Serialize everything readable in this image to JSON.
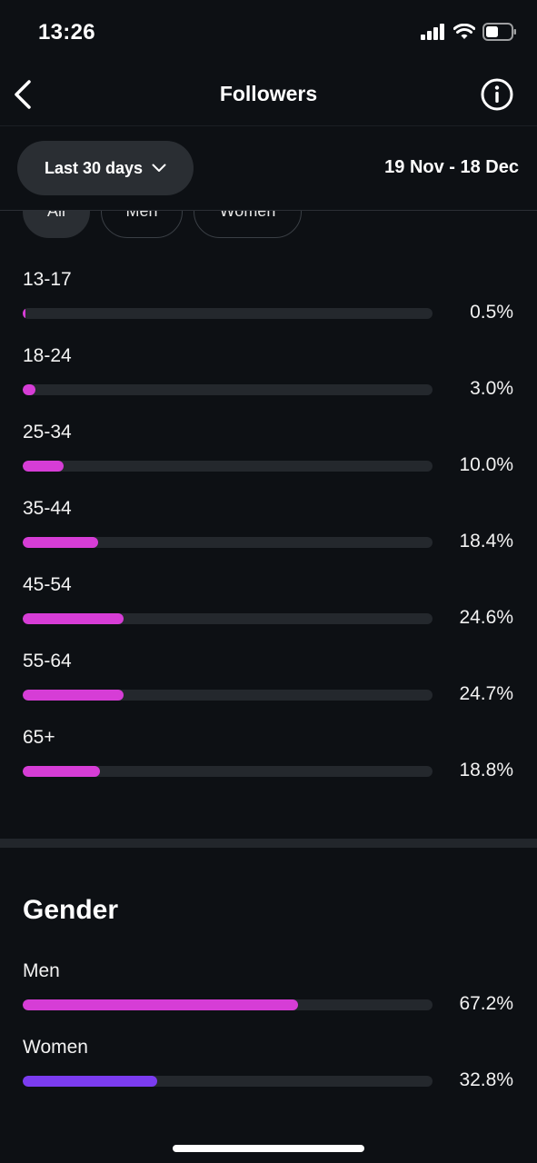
{
  "status_bar": {
    "time": "13:26",
    "icons": [
      "cellular-signal-icon",
      "wifi-icon",
      "battery-icon"
    ]
  },
  "nav": {
    "title": "Followers",
    "back_icon": "chevron-left-icon",
    "info_icon": "info-icon"
  },
  "filter": {
    "date_period": "Last 30 days",
    "dropdown_icon": "chevron-down-icon",
    "date_range": "19 Nov - 18 Dec"
  },
  "segments": [
    {
      "label": "All",
      "selected": true
    },
    {
      "label": "Men",
      "selected": false
    },
    {
      "label": "Women",
      "selected": false
    }
  ],
  "age_ranges": [
    {
      "label": "13-17",
      "percent_text": "0.5%",
      "value": 0.5
    },
    {
      "label": "18-24",
      "percent_text": "3.0%",
      "value": 3.0
    },
    {
      "label": "25-34",
      "percent_text": "10.0%",
      "value": 10.0
    },
    {
      "label": "35-44",
      "percent_text": "18.4%",
      "value": 18.4
    },
    {
      "label": "45-54",
      "percent_text": "24.6%",
      "value": 24.6
    },
    {
      "label": "55-64",
      "percent_text": "24.7%",
      "value": 24.7
    },
    {
      "label": "65+",
      "percent_text": "18.8%",
      "value": 18.8
    }
  ],
  "gender": {
    "title": "Gender",
    "items": [
      {
        "label": "Men",
        "percent_text": "67.2%",
        "value": 67.2
      },
      {
        "label": "Women",
        "percent_text": "32.8%",
        "value": 32.8
      }
    ]
  },
  "colors": {
    "background": "#0d1014",
    "accent_pink": "#d63dd6",
    "accent_purple": "#7b3cf0",
    "track": "#24282d"
  }
}
